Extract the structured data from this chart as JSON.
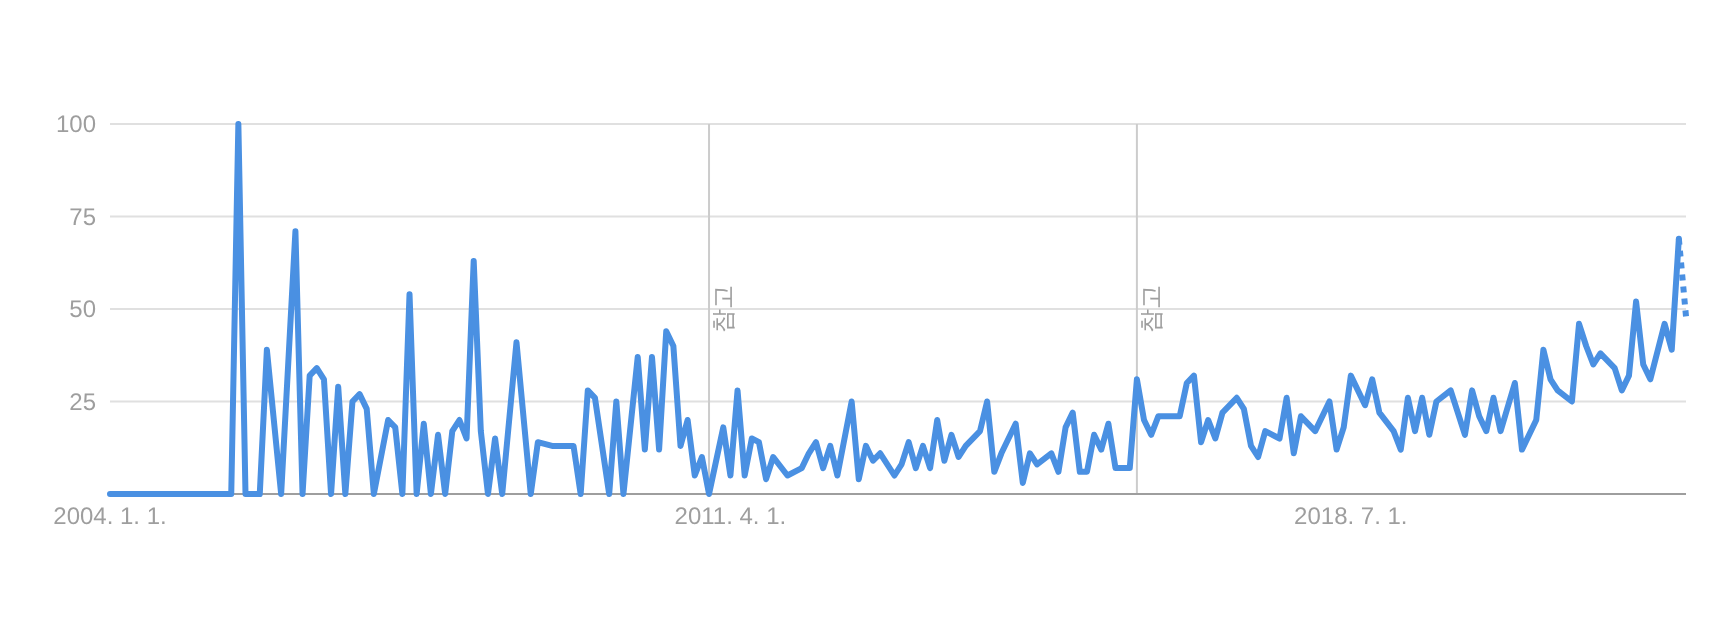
{
  "chart_data": {
    "type": "line",
    "x": [
      "2004-01",
      "2005-06",
      "2005-07",
      "2005-08",
      "2005-10",
      "2005-11",
      "2006-01",
      "2006-03",
      "2006-04",
      "2006-05",
      "2006-06",
      "2006-07",
      "2006-08",
      "2006-09",
      "2006-10",
      "2006-11",
      "2006-12",
      "2007-01",
      "2007-02",
      "2007-04",
      "2007-05",
      "2007-06",
      "2007-07",
      "2007-08",
      "2007-09",
      "2007-10",
      "2007-11",
      "2007-12",
      "2008-01",
      "2008-02",
      "2008-03",
      "2008-04",
      "2008-05",
      "2008-06",
      "2008-07",
      "2008-08",
      "2008-10",
      "2008-12",
      "2009-01",
      "2009-03",
      "2009-06",
      "2009-07",
      "2009-08",
      "2009-09",
      "2009-11",
      "2009-12",
      "2010-01",
      "2010-03",
      "2010-04",
      "2010-05",
      "2010-06",
      "2010-07",
      "2010-08",
      "2010-09",
      "2010-10",
      "2010-11",
      "2010-12",
      "2011-01",
      "2011-03",
      "2011-04",
      "2011-05",
      "2011-06",
      "2011-07",
      "2011-08",
      "2011-09",
      "2011-10",
      "2011-12",
      "2012-02",
      "2012-03",
      "2012-04",
      "2012-05",
      "2012-06",
      "2012-07",
      "2012-09",
      "2012-10",
      "2012-11",
      "2012-12",
      "2013-01",
      "2013-03",
      "2013-04",
      "2013-05",
      "2013-06",
      "2013-07",
      "2013-08",
      "2013-09",
      "2013-10",
      "2013-11",
      "2013-12",
      "2014-01",
      "2014-03",
      "2014-04",
      "2014-05",
      "2014-06",
      "2014-08",
      "2014-09",
      "2014-10",
      "2014-11",
      "2015-01",
      "2015-02",
      "2015-03",
      "2015-04",
      "2015-05",
      "2015-06",
      "2015-07",
      "2015-08",
      "2015-09",
      "2015-10",
      "2015-12",
      "2016-01",
      "2016-02",
      "2016-03",
      "2016-04",
      "2016-07",
      "2016-08",
      "2016-09",
      "2016-10",
      "2016-11",
      "2016-12",
      "2017-01",
      "2017-03",
      "2017-04",
      "2017-05",
      "2017-06",
      "2017-07",
      "2017-09",
      "2017-10",
      "2017-11",
      "2017-12",
      "2018-02",
      "2018-04",
      "2018-05",
      "2018-06",
      "2018-07",
      "2018-09",
      "2018-10",
      "2018-11",
      "2019-01",
      "2019-02",
      "2019-03",
      "2019-04",
      "2019-05",
      "2019-06",
      "2019-07",
      "2019-09",
      "2019-11",
      "2019-12",
      "2020-01",
      "2020-02",
      "2020-03",
      "2020-04",
      "2020-06",
      "2020-07",
      "2020-09",
      "2020-10",
      "2020-11",
      "2020-12",
      "2021-02",
      "2021-03",
      "2021-04",
      "2021-05",
      "2021-06",
      "2021-08",
      "2021-09",
      "2021-10",
      "2021-11",
      "2021-12",
      "2022-01",
      "2022-03",
      "2022-04",
      "2022-05"
    ],
    "series": [
      {
        "color": "#4a90e2",
        "line_style": "solid",
        "values": [
          0,
          0,
          100,
          0,
          0,
          39,
          0,
          71,
          0,
          32,
          34,
          31,
          0,
          29,
          0,
          25,
          27,
          23,
          0,
          20,
          18,
          0,
          54,
          0,
          19,
          0,
          16,
          0,
          17,
          20,
          15,
          63,
          17,
          0,
          15,
          0,
          41,
          0,
          14,
          13,
          13,
          0,
          28,
          26,
          0,
          25,
          0,
          37,
          12,
          37,
          12,
          44,
          40,
          13,
          20,
          5,
          10,
          0,
          18,
          5,
          28,
          5,
          15,
          14,
          4,
          10,
          5,
          7,
          11,
          14,
          7,
          13,
          5,
          25,
          4,
          13,
          9,
          11,
          5,
          8,
          14,
          7,
          13,
          7,
          20,
          9,
          16,
          10,
          13,
          17,
          25,
          6,
          11,
          19,
          3,
          11,
          8,
          11,
          6,
          18,
          22,
          6,
          6,
          16,
          12,
          19,
          7,
          7,
          31,
          20,
          16,
          21,
          21,
          30,
          32,
          14,
          20,
          15,
          22,
          26,
          23,
          13,
          10,
          17,
          15,
          26,
          11,
          21,
          17,
          25,
          12,
          18,
          32,
          24,
          31,
          22,
          17,
          12,
          26,
          17,
          26,
          16,
          25,
          28,
          16,
          28,
          21,
          17,
          26,
          17,
          30,
          12,
          20,
          39,
          31,
          28,
          25,
          46,
          40,
          35,
          38,
          34,
          28,
          32,
          52,
          35,
          31,
          46,
          39,
          69
        ]
      },
      {
        "color": "#4a90e2",
        "line_style": "dotted",
        "x": [
          "2022-05",
          "2022-06"
        ],
        "values": [
          69,
          48
        ]
      }
    ],
    "xlim": [
      "2004-01",
      "2022-06"
    ],
    "xticks": [
      {
        "value": "2004-01-01",
        "label": "2004. 1. 1."
      },
      {
        "value": "2011-04-01",
        "label": "2011. 4. 1."
      },
      {
        "value": "2018-07-01",
        "label": "2018. 7. 1."
      }
    ],
    "ylim": [
      0,
      100
    ],
    "yticks": [
      25,
      50,
      75,
      100
    ],
    "grid": "y",
    "marker": "none",
    "ref_lines": [
      {
        "axis": "x",
        "value": "2011-01",
        "label": "참고",
        "color": "#cccccc"
      },
      {
        "axis": "x",
        "value": "2016-01",
        "label": "참고",
        "color": "#cccccc"
      }
    ]
  }
}
